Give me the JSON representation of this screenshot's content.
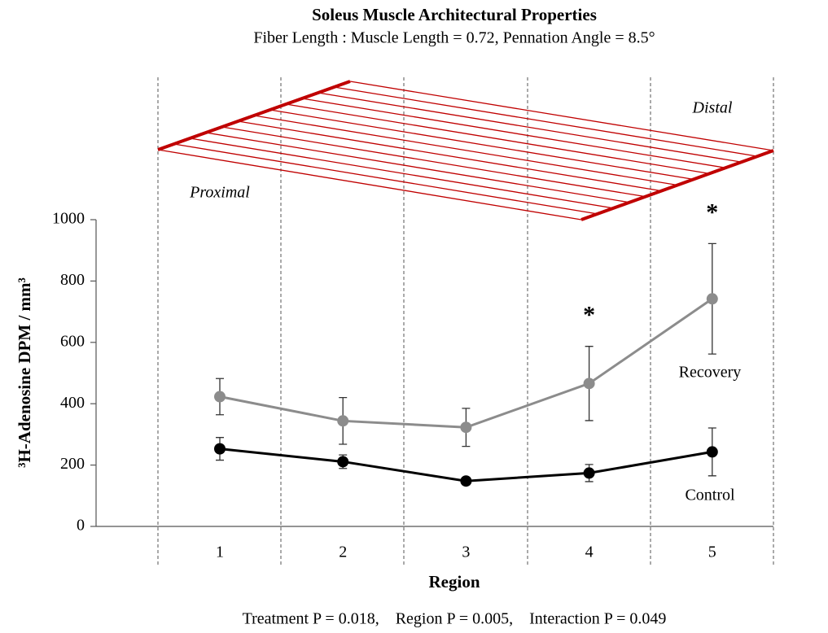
{
  "chart_data": {
    "type": "line",
    "title": "Soleus Muscle Architectural Properties",
    "subtitle": "Fiber Length : Muscle Length = 0.72, Pennation Angle = 8.5°",
    "diagram_labels": [
      "Proximal",
      "Distal"
    ],
    "x_label": "Region",
    "y_label": "³H-Adenosine DPM / mm³",
    "footnote": "Treatment P = 0.018,    Region P = 0.005,    Interaction P = 0.049",
    "categories": [
      "1",
      "2",
      "3",
      "4",
      "5"
    ],
    "series": [
      {
        "name": "Recovery",
        "color": "#8c8c8c",
        "values": [
          423,
          344,
          323,
          466,
          742
        ],
        "errors": [
          59,
          76,
          62,
          121,
          180
        ]
      },
      {
        "name": "Control",
        "color": "#000000",
        "values": [
          253,
          211,
          148,
          174,
          243
        ],
        "errors": [
          37,
          22,
          12,
          28,
          78
        ]
      }
    ],
    "annotations": [
      {
        "text": "*",
        "category": "4"
      },
      {
        "text": "*",
        "category": "5"
      }
    ],
    "ylim": [
      0,
      1000
    ],
    "yticks": [
      0,
      200,
      400,
      600,
      800,
      1000
    ]
  }
}
